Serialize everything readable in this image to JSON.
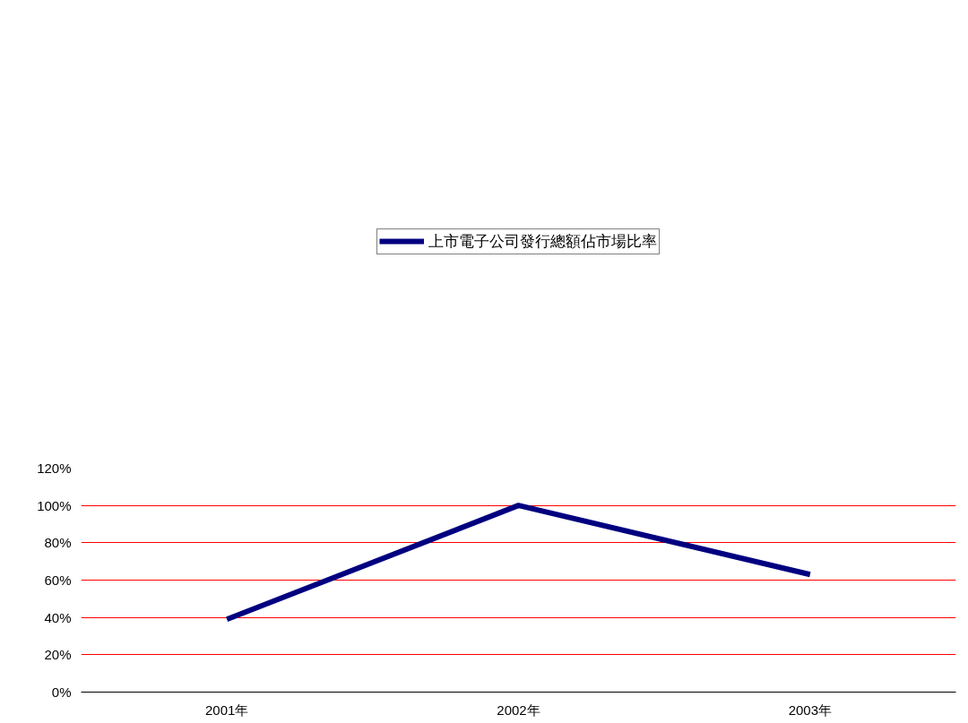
{
  "chart_data": {
    "type": "line",
    "categories": [
      "2001年",
      "2002年",
      "2003年"
    ],
    "series": [
      {
        "name": "上市電子公司發行總額佔市場比率",
        "color": "#000080",
        "values": [
          39,
          100,
          63
        ]
      }
    ],
    "ylim": [
      0,
      120
    ],
    "yticks": [
      {
        "value": 0,
        "label": "0%"
      },
      {
        "value": 20,
        "label": "20%"
      },
      {
        "value": 40,
        "label": "40%"
      },
      {
        "value": 60,
        "label": "60%"
      },
      {
        "value": 80,
        "label": "80%"
      },
      {
        "value": 100,
        "label": "100%"
      },
      {
        "value": 120,
        "label": "120%"
      }
    ],
    "grid": "y",
    "legend": "top",
    "marker": "none",
    "line_style": "solid"
  }
}
